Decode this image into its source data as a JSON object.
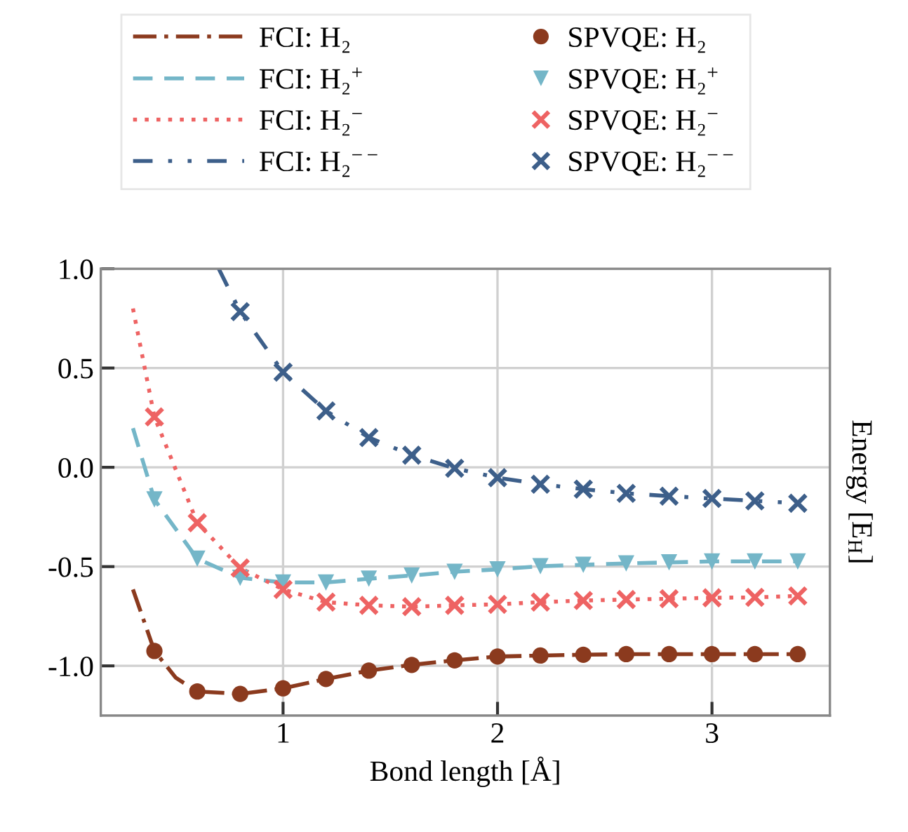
{
  "chart_data": {
    "type": "line",
    "xlabel": "Bond length [Å]",
    "ylabel": "Energy [E$_{H}$]",
    "xlim": [
      0.15,
      3.55
    ],
    "xticks": [
      1,
      2,
      3
    ],
    "ylim": [
      -1.25,
      1.0
    ],
    "yticks": [
      {
        "value": 1.0,
        "label": "1.0"
      },
      {
        "value": 0.5,
        "label": "0.5"
      },
      {
        "value": 0.0,
        "label": "0.0"
      },
      {
        "value": -0.5,
        "label": "-0.5"
      },
      {
        "value": -1.0,
        "label": "-1.0"
      }
    ],
    "grid": true,
    "legend": "top",
    "series": [
      {
        "name": "FCI: H₂",
        "line_style": "dashdot",
        "marker": "none",
        "color": "#8b3a1e",
        "x": [
          0.3,
          0.4,
          0.5,
          0.6,
          0.8,
          1.0,
          1.2,
          1.4,
          1.6,
          1.8,
          2.0,
          2.2,
          2.4,
          2.6,
          2.8,
          3.0,
          3.2,
          3.4
        ],
        "values": [
          -0.615,
          -0.925,
          -1.06,
          -1.129,
          -1.141,
          -1.113,
          -1.066,
          -1.024,
          -0.995,
          -0.972,
          -0.953,
          -0.948,
          -0.944,
          -0.941,
          -0.941,
          -0.941,
          -0.941,
          -0.941
        ]
      },
      {
        "name": "FCI: H₂$^{+}$",
        "line_style": "dashed",
        "marker": "none",
        "color": "#74b6c8",
        "x": [
          0.3,
          0.4,
          0.6,
          0.8,
          1.0,
          1.2,
          1.4,
          1.6,
          1.8,
          2.0,
          2.2,
          2.4,
          2.6,
          2.8,
          3.0,
          3.2,
          3.4
        ],
        "values": [
          0.197,
          -0.162,
          -0.46,
          -0.556,
          -0.58,
          -0.58,
          -0.561,
          -0.545,
          -0.526,
          -0.514,
          -0.498,
          -0.491,
          -0.484,
          -0.479,
          -0.474,
          -0.474,
          -0.474
        ]
      },
      {
        "name": "FCI: H₂$^{−}$",
        "line_style": "dotted",
        "marker": "none",
        "color": "#ee6363",
        "x": [
          0.3,
          0.4,
          0.6,
          0.8,
          1.0,
          1.2,
          1.4,
          1.6,
          1.8,
          2.0,
          2.2,
          2.4,
          2.6,
          2.8,
          3.0,
          3.2,
          3.4
        ],
        "values": [
          0.8,
          0.254,
          -0.279,
          -0.507,
          -0.615,
          -0.679,
          -0.695,
          -0.702,
          -0.695,
          -0.69,
          -0.679,
          -0.671,
          -0.666,
          -0.662,
          -0.657,
          -0.655,
          -0.648
        ]
      },
      {
        "name": "FCI: H₂$^{−−}$",
        "line_style": "dashdotdot",
        "marker": "none",
        "color": "#3d5f8a",
        "x": [
          0.7,
          0.8,
          1.0,
          1.2,
          1.4,
          1.6,
          1.8,
          2.0,
          2.2,
          2.4,
          2.6,
          2.8,
          3.0,
          3.2,
          3.4
        ],
        "values": [
          1.0,
          0.784,
          0.479,
          0.284,
          0.15,
          0.061,
          -0.005,
          -0.052,
          -0.085,
          -0.11,
          -0.131,
          -0.145,
          -0.157,
          -0.169,
          -0.181
        ]
      },
      {
        "name": "SPVQE: H₂",
        "type": "scatter",
        "marker": "circle",
        "color": "#8b3a1e",
        "x": [
          0.4,
          0.6,
          0.8,
          1.0,
          1.2,
          1.4,
          1.6,
          1.8,
          2.0,
          2.2,
          2.4,
          2.6,
          2.8,
          3.0,
          3.2,
          3.4
        ],
        "values": [
          -0.925,
          -1.129,
          -1.141,
          -1.113,
          -1.066,
          -1.024,
          -0.995,
          -0.972,
          -0.953,
          -0.948,
          -0.944,
          -0.941,
          -0.941,
          -0.941,
          -0.941,
          -0.941
        ]
      },
      {
        "name": "SPVQE: H₂$^{+}$",
        "type": "scatter",
        "marker": "triangle",
        "color": "#74b6c8",
        "x": [
          0.4,
          0.6,
          0.8,
          1.0,
          1.2,
          1.4,
          1.6,
          1.8,
          2.0,
          2.2,
          2.4,
          2.6,
          2.8,
          3.0,
          3.2,
          3.4
        ],
        "values": [
          -0.162,
          -0.46,
          -0.556,
          -0.58,
          -0.58,
          -0.561,
          -0.545,
          -0.526,
          -0.514,
          -0.498,
          -0.491,
          -0.484,
          -0.479,
          -0.474,
          -0.474,
          -0.474
        ]
      },
      {
        "name": "SPVQE: H₂$^{−}$",
        "type": "scatter",
        "marker": "cross",
        "color": "#ee6363",
        "x": [
          0.4,
          0.6,
          0.8,
          1.0,
          1.2,
          1.4,
          1.6,
          1.8,
          2.0,
          2.2,
          2.4,
          2.6,
          2.8,
          3.0,
          3.2,
          3.4
        ],
        "values": [
          0.254,
          -0.279,
          -0.507,
          -0.615,
          -0.679,
          -0.695,
          -0.702,
          -0.695,
          -0.69,
          -0.679,
          -0.671,
          -0.666,
          -0.662,
          -0.657,
          -0.655,
          -0.648
        ]
      },
      {
        "name": "SPVQE: H₂$^{−−}$",
        "type": "scatter",
        "marker": "cross",
        "color": "#3d5f8a",
        "x": [
          0.8,
          1.0,
          1.2,
          1.4,
          1.6,
          1.8,
          2.0,
          2.2,
          2.4,
          2.6,
          2.8,
          3.0,
          3.2,
          3.4
        ],
        "values": [
          0.784,
          0.479,
          0.284,
          0.15,
          0.061,
          -0.005,
          -0.052,
          -0.085,
          -0.11,
          -0.131,
          -0.145,
          -0.157,
          -0.169,
          -0.181
        ]
      }
    ]
  }
}
